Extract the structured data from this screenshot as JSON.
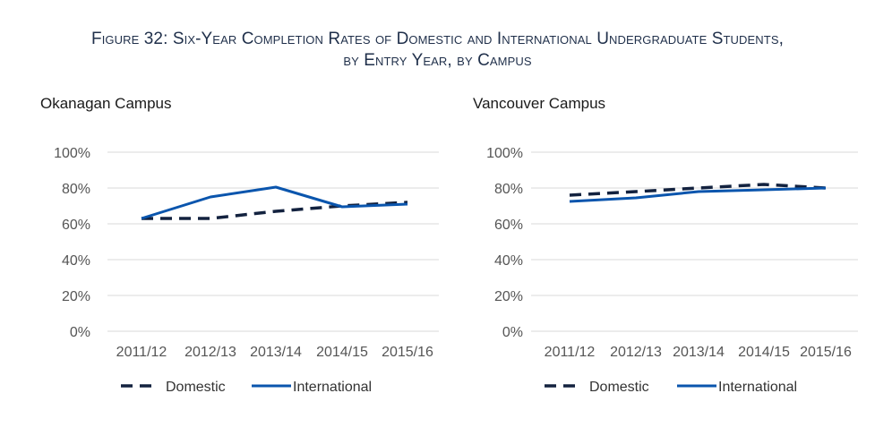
{
  "figure_title": {
    "line1": "Figure 32: Six-Year Completion Rates of Domestic and International Undergraduate Students,",
    "line2": "by Entry Year, by Campus"
  },
  "colors": {
    "domestic": "#13223f",
    "international": "#0a55ad",
    "grid": "#d9d9d9"
  },
  "chart_data": [
    {
      "type": "line",
      "title": "Okanagan Campus",
      "categories": [
        "2011/12",
        "2012/13",
        "2013/14",
        "2014/15",
        "2015/16"
      ],
      "yticks": [
        "0%",
        "20%",
        "40%",
        "60%",
        "80%",
        "100%"
      ],
      "ylim": [
        0,
        100
      ],
      "grid": true,
      "legend": "bottom",
      "series": [
        {
          "name": "Domestic",
          "style": "dashed",
          "values": [
            63,
            63,
            67,
            70,
            72
          ]
        },
        {
          "name": "International",
          "style": "solid",
          "values": [
            63,
            75,
            80.5,
            69.5,
            71
          ]
        }
      ]
    },
    {
      "type": "line",
      "title": "Vancouver Campus",
      "categories": [
        "2011/12",
        "2012/13",
        "2013/14",
        "2014/15",
        "2015/16"
      ],
      "yticks": [
        "0%",
        "20%",
        "40%",
        "60%",
        "80%",
        "100%"
      ],
      "ylim": [
        0,
        100
      ],
      "grid": true,
      "legend": "bottom",
      "series": [
        {
          "name": "Domestic",
          "style": "dashed",
          "values": [
            76,
            78,
            80,
            82,
            80
          ]
        },
        {
          "name": "International",
          "style": "solid",
          "values": [
            72.5,
            74.5,
            78,
            79,
            80
          ]
        }
      ]
    }
  ]
}
